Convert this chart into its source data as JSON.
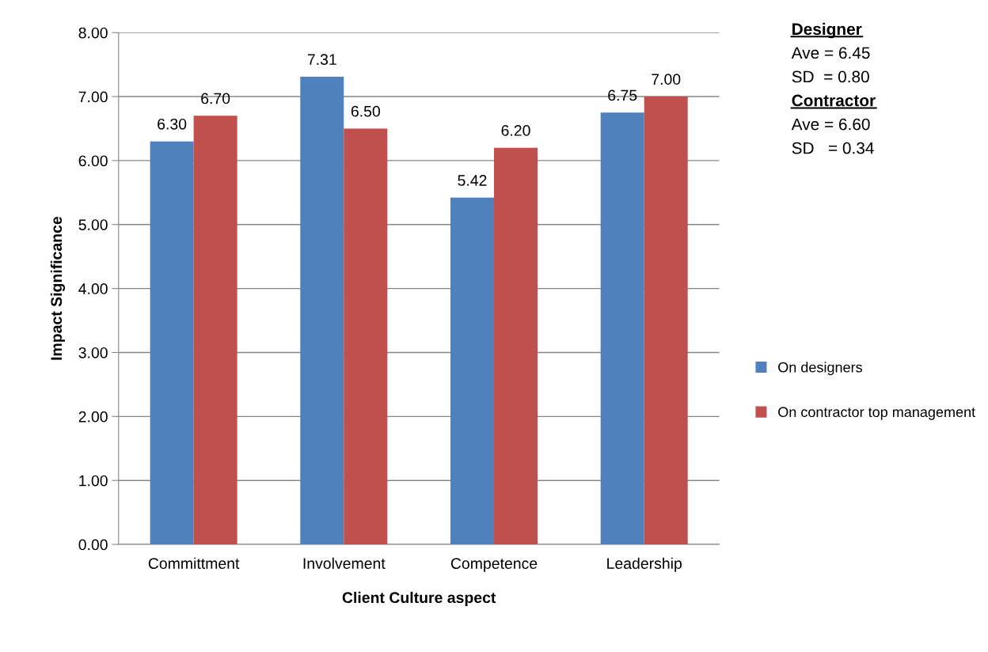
{
  "chart_data": {
    "type": "bar",
    "xlabel": "Client Culture aspect",
    "ylabel": "Impact Significance",
    "categories": [
      "Committment",
      "Involvement",
      "Competence",
      "Leadership"
    ],
    "series": [
      {
        "name": "On designers",
        "color": "#4f81bd",
        "values": [
          6.3,
          7.31,
          5.42,
          6.75
        ],
        "value_labels": [
          "6.30",
          "7.31",
          "5.42",
          "6.75"
        ]
      },
      {
        "name": "On contractor top management",
        "color": "#c0504d",
        "values": [
          6.7,
          6.5,
          6.2,
          7.0
        ],
        "value_labels": [
          "6.70",
          "6.50",
          "6.20",
          "7.00"
        ]
      }
    ],
    "ylim": [
      0,
      8
    ],
    "yticks": [
      {
        "value": 0,
        "label": "0.00"
      },
      {
        "value": 1,
        "label": "1.00"
      },
      {
        "value": 2,
        "label": "2.00"
      },
      {
        "value": 3,
        "label": "3.00"
      },
      {
        "value": 4,
        "label": "4.00"
      },
      {
        "value": 5,
        "label": "5.00"
      },
      {
        "value": 6,
        "label": "6.00"
      },
      {
        "value": 7,
        "label": "7.00"
      },
      {
        "value": 8,
        "label": "8.00"
      }
    ],
    "grid": "y",
    "legend": "right",
    "annotations": [
      "Designer",
      "Ave = 6.45",
      "SD  = 0.80",
      "Contractor",
      "Ave = 6.60",
      "SD   = 0.34"
    ]
  }
}
